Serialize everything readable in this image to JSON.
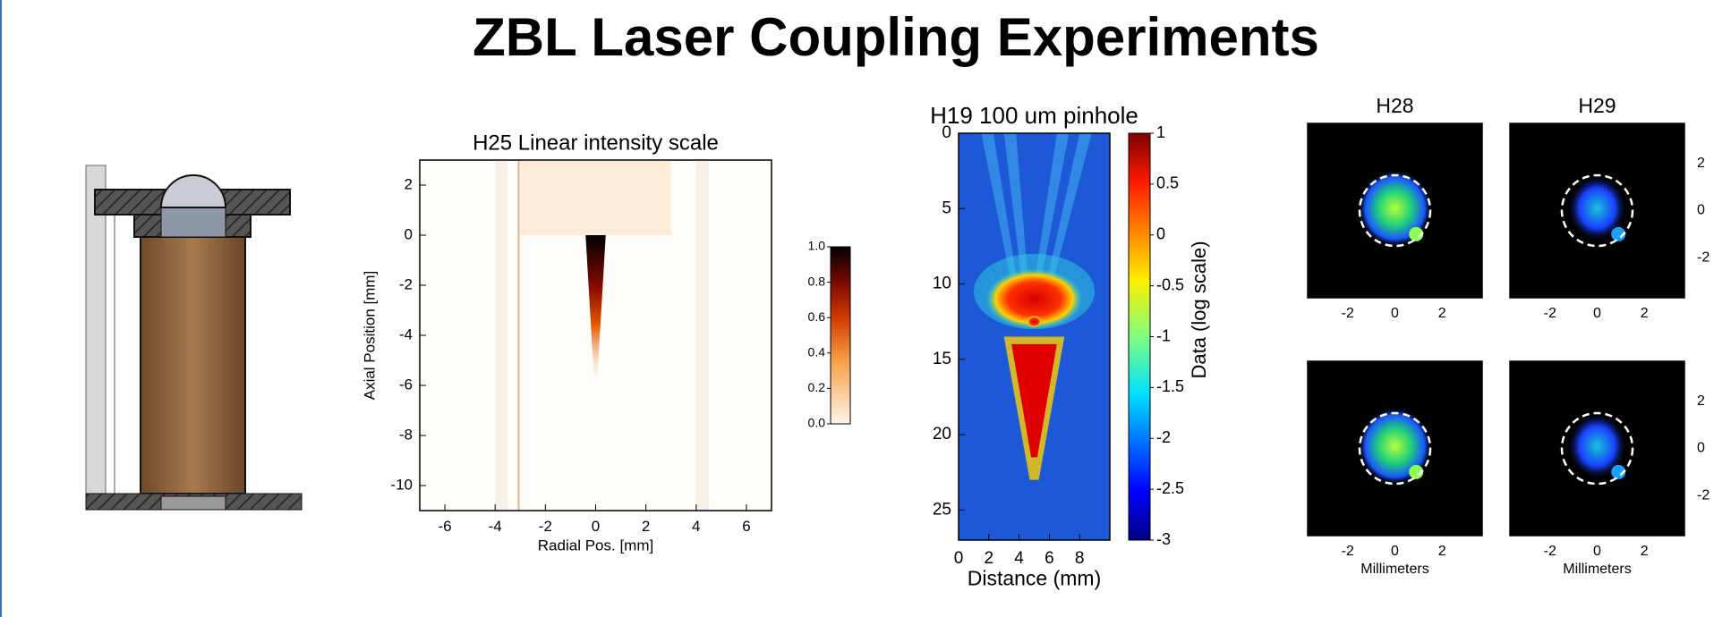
{
  "title": "ZBL Laser Coupling Experiments",
  "chart_data": [
    {
      "type": "heatmap",
      "title": "H25 Linear intensity scale",
      "xlabel": "Radial Pos. [mm]",
      "ylabel": "Axial Position [mm]",
      "xlim": [
        -7,
        7
      ],
      "ylim": [
        -11,
        3
      ],
      "xticks": [
        -6,
        -4,
        -2,
        0,
        2,
        4,
        6
      ],
      "yticks": [
        2,
        0,
        -2,
        -4,
        -6,
        -8,
        -10
      ],
      "colorbar": {
        "ylim": [
          0,
          1
        ],
        "yticks": [
          {
            "value": 0,
            "label": "0.0"
          },
          0.2,
          0.4,
          0.6,
          0.8,
          {
            "value": 1,
            "label": "1.0"
          }
        ]
      }
    },
    {
      "type": "heatmap",
      "title": "H19 100 um pinhole",
      "xlabel": "Distance (mm)",
      "xlim": [
        0,
        10
      ],
      "ylim": [
        27,
        0
      ],
      "xticks": [
        0,
        2,
        4,
        6,
        8
      ],
      "yticks": [
        0,
        5,
        10,
        15,
        20,
        25
      ],
      "colorbar": {
        "label": "Data (log scale)",
        "ylim": [
          -3,
          1
        ],
        "yticks": [
          1,
          0.5,
          0,
          -0.5,
          -1,
          -1.5,
          -2,
          -2.5,
          -3
        ]
      }
    },
    {
      "type": "heatmap",
      "title": "H28",
      "xlim": [
        -3.7,
        3.7
      ],
      "ylim": [
        -3.7,
        3.7
      ],
      "xticks": [
        -2,
        0,
        2
      ]
    },
    {
      "type": "heatmap",
      "title": "H29",
      "xlim": [
        -3.7,
        3.7
      ],
      "ylim": [
        -3.7,
        3.7
      ],
      "xticks": [
        -2,
        0,
        2
      ],
      "yticks": [
        2,
        0,
        -2
      ]
    },
    {
      "type": "heatmap",
      "xlabel": "Millimeters",
      "xlim": [
        -3.7,
        3.7
      ],
      "ylim": [
        -3.7,
        3.7
      ],
      "xticks": [
        -2,
        0,
        2
      ]
    },
    {
      "type": "heatmap",
      "xlabel": "Millimeters",
      "xlim": [
        -3.7,
        3.7
      ],
      "ylim": [
        -3.7,
        3.7
      ],
      "xticks": [
        -2,
        0,
        2
      ],
      "yticks": [
        2,
        0,
        -2
      ]
    }
  ]
}
